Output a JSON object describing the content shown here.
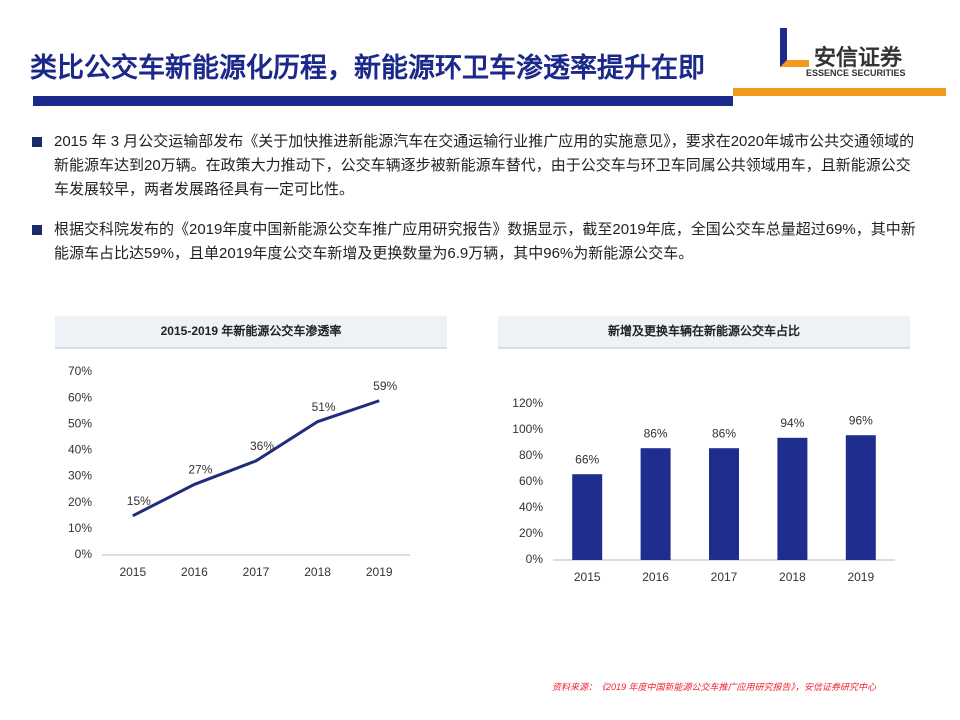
{
  "header": {
    "title": "类比公交车新能源化历程，新能源环卫车渗透率提升在即",
    "logo_cn": "安信证券",
    "logo_en": "ESSENCE SECURITIES"
  },
  "bullets": [
    "2015 年 3 月公交运输部发布《关于加快推进新能源汽车在交通运输行业推广应用的实施意见》，要求在2020年城市公共交通领域的新能源车达到20万辆。在政策大力推动下，公交车辆逐步被新能源车替代，由于公交车与环卫车同属公共领域用车，且新能源公交车发展较早，两者发展路径具有一定可比性。",
    "根据交科院发布的《2019年度中国新能源公交车推广应用研究报告》数据显示，截至2019年底，全国公交车总量超过69%，其中新能源车占比达59%，且单2019年度公交车新增及更换数量为6.9万辆，其中96%为新能源公交车。"
  ],
  "chart_data": [
    {
      "type": "line",
      "title": "2015-2019 年新能源公交车渗透率",
      "categories": [
        "2015",
        "2016",
        "2017",
        "2018",
        "2019"
      ],
      "values": [
        15,
        27,
        36,
        51,
        59
      ],
      "value_labels": [
        "15%",
        "27%",
        "36%",
        "51%",
        "59%"
      ],
      "color": "#1f2d7b",
      "ylim": [
        0,
        70
      ],
      "yticks": [
        {
          "value": 0,
          "label": "0%"
        },
        {
          "value": 10,
          "label": "10%"
        },
        {
          "value": 20,
          "label": "20%"
        },
        {
          "value": 30,
          "label": "30%"
        },
        {
          "value": 40,
          "label": "40%"
        },
        {
          "value": 50,
          "label": "50%"
        },
        {
          "value": 60,
          "label": "60%"
        },
        {
          "value": 70,
          "label": "70%"
        }
      ]
    },
    {
      "type": "bar",
      "title": "新增及更换车辆在新能源公交车占比",
      "categories": [
        "2015",
        "2016",
        "2017",
        "2018",
        "2019"
      ],
      "values": [
        66,
        86,
        86,
        94,
        96
      ],
      "value_labels": [
        "66%",
        "86%",
        "86%",
        "94%",
        "96%"
      ],
      "color": "#1f2d8f",
      "ylim": [
        0,
        120
      ],
      "yticks": [
        {
          "value": 0,
          "label": "0%"
        },
        {
          "value": 20,
          "label": "20%"
        },
        {
          "value": 40,
          "label": "40%"
        },
        {
          "value": 60,
          "label": "60%"
        },
        {
          "value": 80,
          "label": "80%"
        },
        {
          "value": 100,
          "label": "100%"
        },
        {
          "value": 120,
          "label": "120%"
        }
      ]
    }
  ],
  "source": "资料来源：《2019 年度中国新能源公交车推广应用研究报告》，安信证券研究中心"
}
